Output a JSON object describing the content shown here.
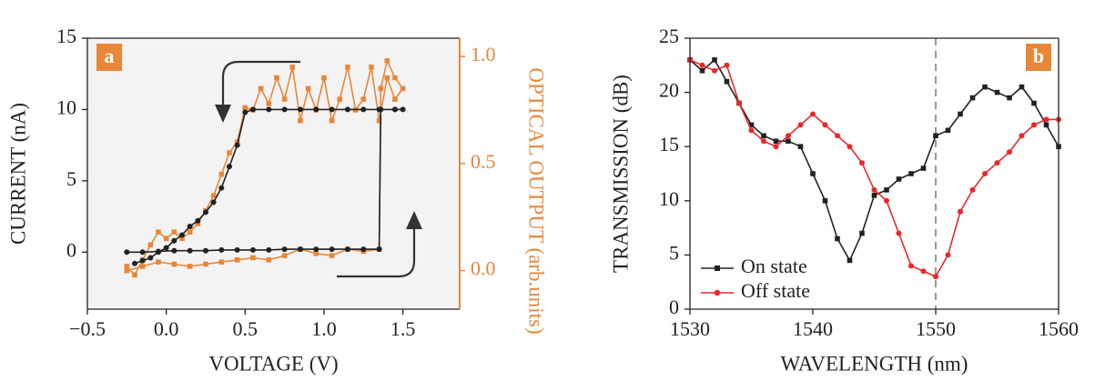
{
  "chart_data": [
    {
      "type": "line",
      "panel_label": "a",
      "panel_label_color": "#e8873a",
      "xlabel": "VOLTAGE (V)",
      "ylabel": "CURRENT (nA)",
      "y2label": "OPTICAL OUTPUT (arb.units)",
      "xlim": [
        -0.5,
        1.86
      ],
      "ylim": [
        -4,
        15
      ],
      "y2lim": [
        -0.18,
        1.085
      ],
      "xticks": [
        {
          "value": -0.5,
          "label": "−0.5"
        },
        {
          "value": 0,
          "label": "0.0"
        },
        0.5,
        {
          "value": 1,
          "label": "1.0"
        },
        1.5
      ],
      "yticks": [
        0,
        5,
        10,
        15
      ],
      "y2ticks": [
        {
          "value": 0,
          "label": "0.0"
        },
        0.5,
        {
          "value": 1,
          "label": "1.0"
        }
      ],
      "background": "#f3f3f3",
      "series": [
        {
          "color": "#e8873a",
          "marker": "s",
          "axis": "y2",
          "x": [
            -0.25,
            -0.15,
            -0.05,
            0.05,
            0.15,
            0.25,
            0.35,
            0.45,
            0.55,
            0.65,
            0.75,
            0.85,
            0.95,
            1.05,
            1.15,
            1.25,
            1.35,
            1.36,
            1.4,
            1.45,
            1.5,
            1.45,
            1.4,
            1.35,
            1.3,
            1.25,
            1.2,
            1.15,
            1.1,
            1.05,
            1.0,
            0.95,
            0.9,
            0.85,
            0.8,
            0.75,
            0.7,
            0.65,
            0.6,
            0.55,
            0.5,
            0.45,
            0.4,
            0.35,
            0.3,
            0.25,
            0.2,
            0.15,
            0.1,
            0.05,
            0,
            -0.05,
            -0.1,
            -0.15,
            -0.2,
            -0.25
          ],
          "values": [
            0,
            0.02,
            0.04,
            0.03,
            0.02,
            0.03,
            0.04,
            0.05,
            0.06,
            0.05,
            0.07,
            0.1,
            0.08,
            0.07,
            0.1,
            0.09,
            0.1,
            0.85,
            0.98,
            0.9,
            0.85,
            0.8,
            0.9,
            0.7,
            0.95,
            0.8,
            0.75,
            0.95,
            0.8,
            0.7,
            0.9,
            0.75,
            0.85,
            0.7,
            0.95,
            0.8,
            0.9,
            0.78,
            0.85,
            0.75,
            0.76,
            0.6,
            0.55,
            0.45,
            0.35,
            0.28,
            0.22,
            0.18,
            0.15,
            0.18,
            0.15,
            0.18,
            0.12,
            0.05,
            -0.02,
            0.02
          ]
        },
        {
          "color": "#222222",
          "marker": "o",
          "x": [
            -0.25,
            -0.15,
            -0.05,
            0.05,
            0.15,
            0.25,
            0.35,
            0.45,
            0.55,
            0.65,
            0.75,
            0.85,
            0.95,
            1.05,
            1.15,
            1.25,
            1.35,
            1.36,
            1.45,
            1.5,
            1.45,
            1.35,
            1.25,
            1.15,
            1.05,
            0.95,
            0.85,
            0.75,
            0.65,
            0.55,
            0.5,
            0.45,
            0.4,
            0.35,
            0.3,
            0.25,
            0.2,
            0.15,
            0.1,
            0.05,
            0,
            -0.05,
            -0.1,
            -0.15,
            -0.2
          ],
          "values": [
            0,
            0,
            0.05,
            0.1,
            0.1,
            0.1,
            0.15,
            0.15,
            0.15,
            0.15,
            0.2,
            0.2,
            0.2,
            0.2,
            0.2,
            0.2,
            0.2,
            10,
            10,
            10,
            10,
            10,
            10,
            10,
            10,
            10,
            10,
            10,
            10,
            10,
            9.8,
            7.5,
            6,
            4.5,
            3.5,
            2.8,
            2.2,
            1.8,
            1.2,
            0.8,
            0.3,
            0,
            -0.4,
            -0.6,
            -0.8
          ]
        }
      ]
    },
    {
      "type": "line",
      "panel_label": "b",
      "panel_label_color": "#e8873a",
      "xlabel": "WAVELENGTH (nm)",
      "ylabel": "TRANSMISSION (dB)",
      "xlim": [
        1530,
        1560
      ],
      "ylim": [
        0,
        25
      ],
      "xticks": [
        1530,
        1540,
        1550,
        1560
      ],
      "yticks": [
        0,
        5,
        10,
        15,
        20,
        25
      ],
      "vline": 1550,
      "legend": "lower left",
      "series": [
        {
          "name": "On state",
          "color": "#222222",
          "marker": "s",
          "x": [
            1530,
            1531,
            1532,
            1533,
            1534,
            1535,
            1536,
            1537,
            1538,
            1539,
            1540,
            1541,
            1542,
            1543,
            1544,
            1545,
            1546,
            1547,
            1548,
            1549,
            1550,
            1551,
            1552,
            1553,
            1554,
            1555,
            1556,
            1557,
            1558,
            1559,
            1560
          ],
          "values": [
            23,
            22,
            23,
            21,
            19,
            17,
            16,
            15.5,
            15.5,
            15,
            12.5,
            10,
            6.5,
            4.5,
            7,
            10.5,
            11,
            12,
            12.5,
            13,
            16,
            16.5,
            18,
            19.5,
            20.5,
            20,
            19.5,
            20.5,
            19,
            17,
            15
          ]
        },
        {
          "name": "Off state",
          "color": "#e8282a",
          "marker": "o",
          "x": [
            1530,
            1531,
            1532,
            1533,
            1534,
            1535,
            1536,
            1537,
            1538,
            1539,
            1540,
            1541,
            1542,
            1543,
            1544,
            1545,
            1546,
            1547,
            1548,
            1549,
            1550,
            1551,
            1552,
            1553,
            1554,
            1555,
            1556,
            1557,
            1558,
            1559,
            1560
          ],
          "values": [
            23,
            22.5,
            22,
            22.5,
            19,
            16.5,
            15.5,
            15,
            16,
            17,
            18,
            17,
            16,
            15,
            13.5,
            11,
            10,
            7,
            4,
            3.5,
            3,
            5,
            9,
            11,
            12.5,
            13.5,
            14.5,
            16,
            17,
            17.5,
            17.5
          ]
        }
      ]
    }
  ]
}
